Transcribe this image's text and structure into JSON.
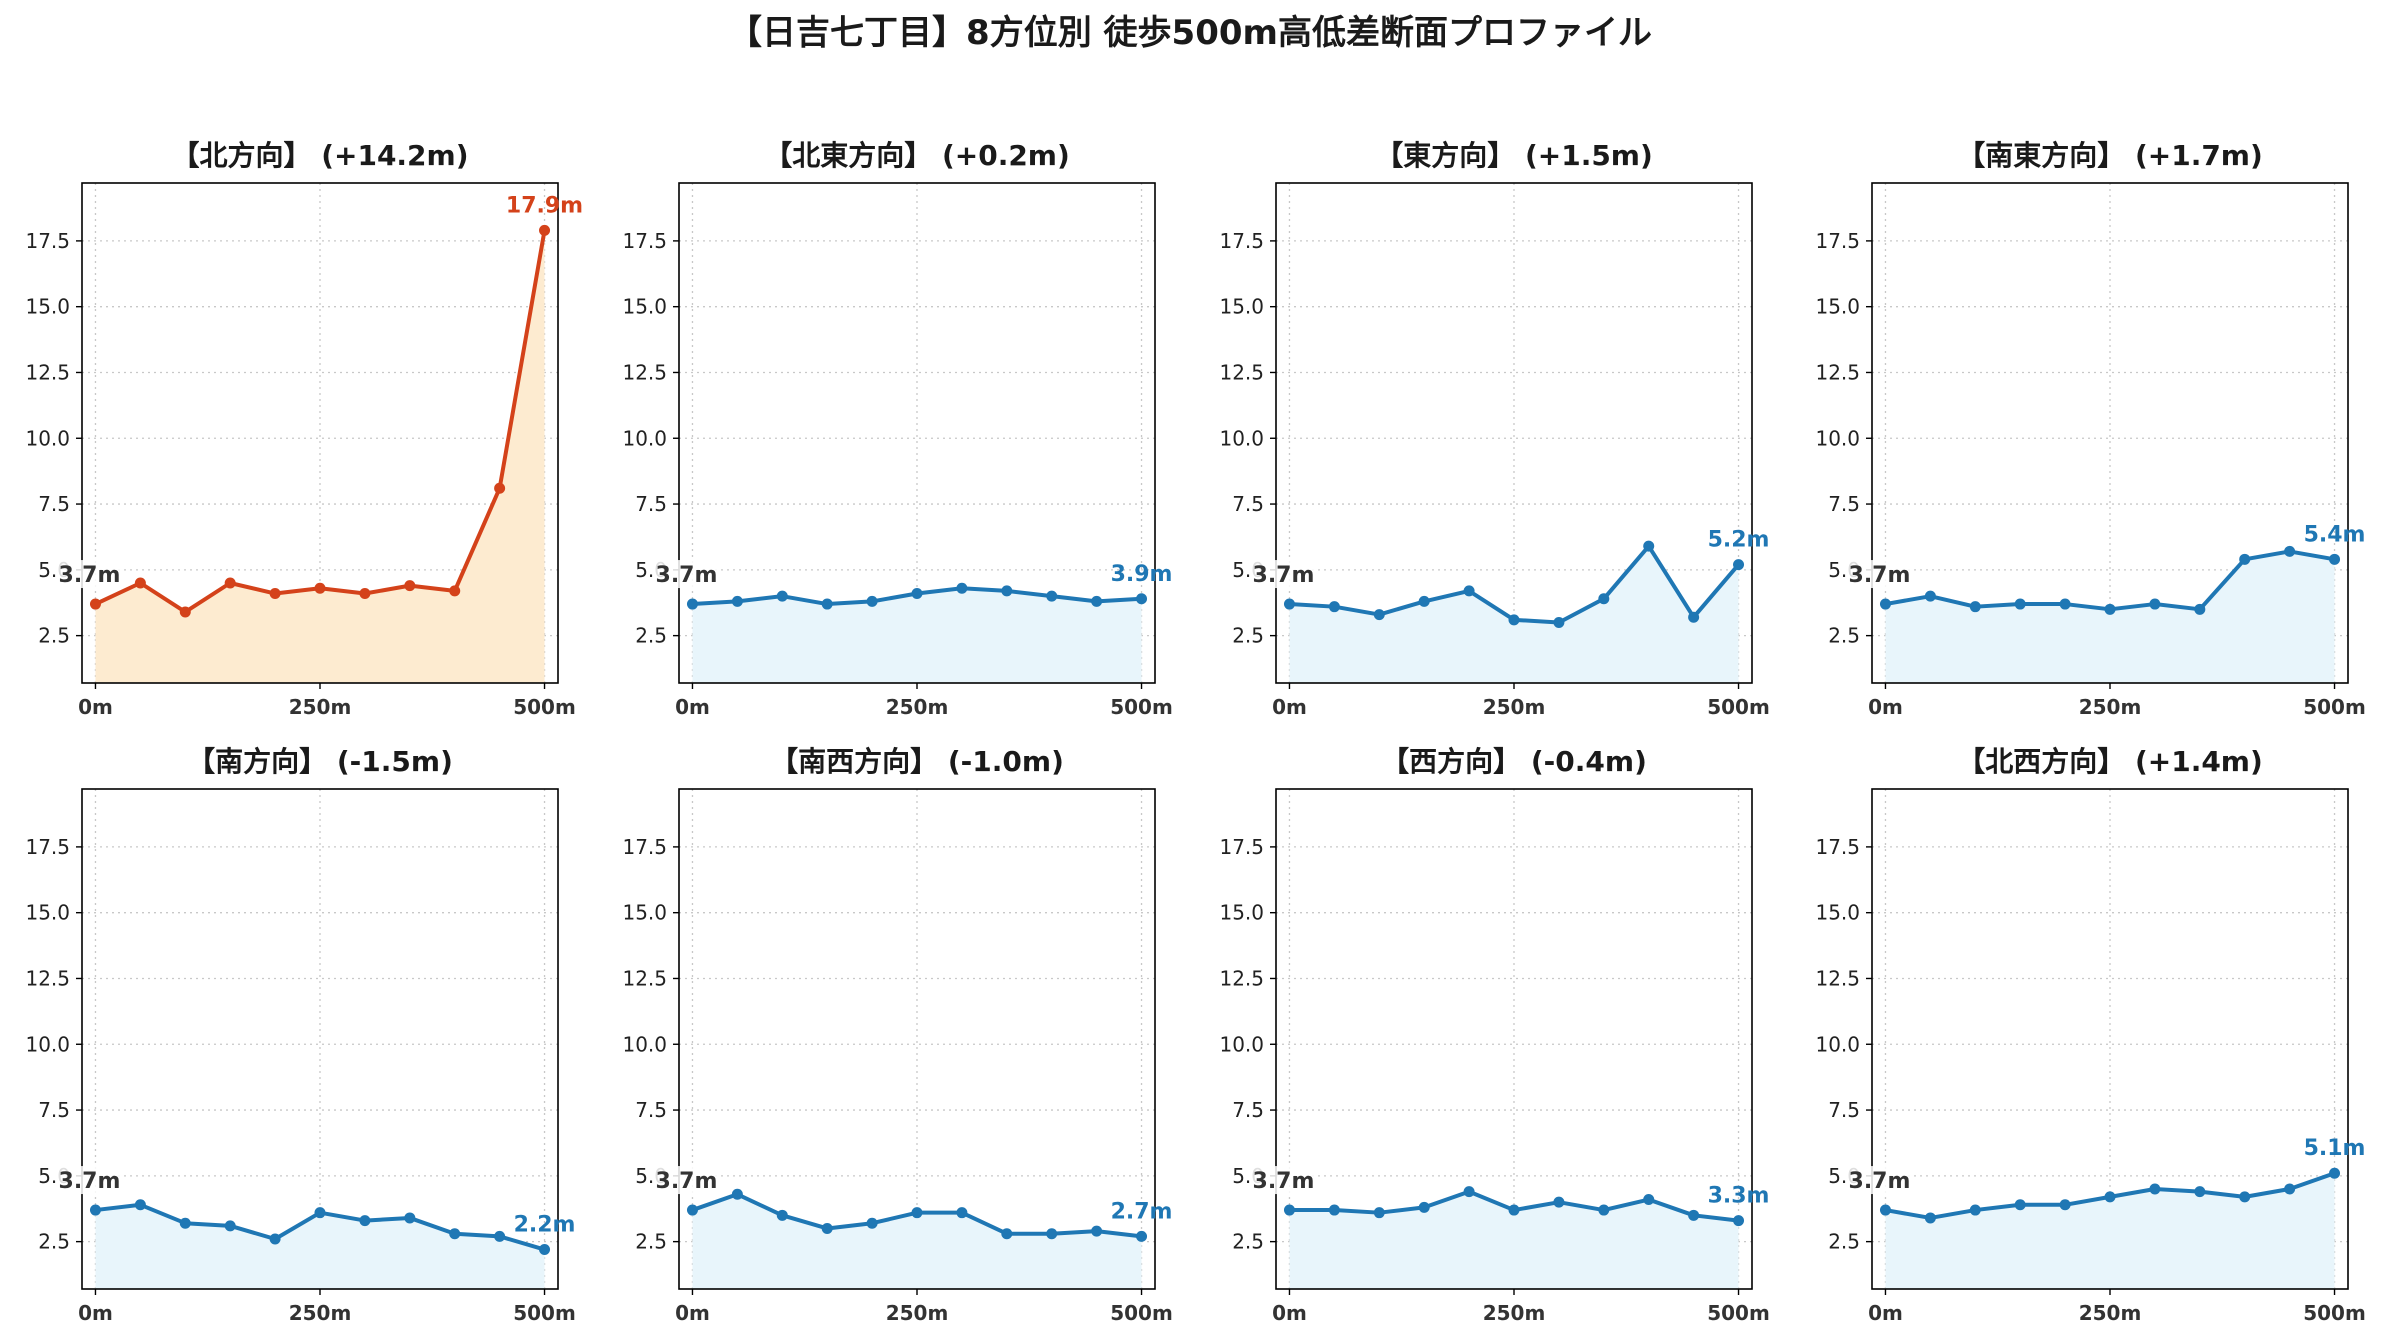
{
  "title": "【日吉七丁目】8方位別 徒歩500m高低差断面プロファイル",
  "colors": {
    "highlight_line": "#d4421a",
    "highlight_fill": "#fdebd0",
    "normal_line": "#1f77b4",
    "normal_fill": "#e8f5fb",
    "start_label": "#333333",
    "grid": "#c8c8c8"
  },
  "chart_data": [
    {
      "type": "area",
      "title": "【北方向】 (+14.2m)",
      "highlight": true,
      "x": [
        0,
        50,
        100,
        150,
        200,
        250,
        300,
        350,
        400,
        450,
        500
      ],
      "y": [
        3.7,
        4.5,
        3.4,
        4.5,
        4.1,
        4.3,
        4.1,
        4.4,
        4.2,
        8.1,
        17.9
      ],
      "start_label": "3.7m",
      "end_label": "17.9m"
    },
    {
      "type": "area",
      "title": "【北東方向】 (+0.2m)",
      "highlight": false,
      "x": [
        0,
        50,
        100,
        150,
        200,
        250,
        300,
        350,
        400,
        450,
        500
      ],
      "y": [
        3.7,
        3.8,
        4.0,
        3.7,
        3.8,
        4.1,
        4.3,
        4.2,
        4.0,
        3.8,
        3.9
      ],
      "start_label": "3.7m",
      "end_label": "3.9m"
    },
    {
      "type": "area",
      "title": "【東方向】 (+1.5m)",
      "highlight": false,
      "x": [
        0,
        50,
        100,
        150,
        200,
        250,
        300,
        350,
        400,
        450,
        500
      ],
      "y": [
        3.7,
        3.6,
        3.3,
        3.8,
        4.2,
        3.1,
        3.0,
        3.9,
        5.9,
        3.2,
        5.2
      ],
      "start_label": "3.7m",
      "end_label": "5.2m"
    },
    {
      "type": "area",
      "title": "【南東方向】 (+1.7m)",
      "highlight": false,
      "x": [
        0,
        50,
        100,
        150,
        200,
        250,
        300,
        350,
        400,
        450,
        500
      ],
      "y": [
        3.7,
        4.0,
        3.6,
        3.7,
        3.7,
        3.5,
        3.7,
        3.5,
        5.4,
        5.7,
        5.4
      ],
      "start_label": "3.7m",
      "end_label": "5.4m"
    },
    {
      "type": "area",
      "title": "【南方向】 (-1.5m)",
      "highlight": false,
      "x": [
        0,
        50,
        100,
        150,
        200,
        250,
        300,
        350,
        400,
        450,
        500
      ],
      "y": [
        3.7,
        3.9,
        3.2,
        3.1,
        2.6,
        3.6,
        3.3,
        3.4,
        2.8,
        2.7,
        2.2
      ],
      "start_label": "3.7m",
      "end_label": "2.2m"
    },
    {
      "type": "area",
      "title": "【南西方向】 (-1.0m)",
      "highlight": false,
      "x": [
        0,
        50,
        100,
        150,
        200,
        250,
        300,
        350,
        400,
        450,
        500
      ],
      "y": [
        3.7,
        4.3,
        3.5,
        3.0,
        3.2,
        3.6,
        3.6,
        2.8,
        2.8,
        2.9,
        2.7
      ],
      "start_label": "3.7m",
      "end_label": "2.7m"
    },
    {
      "type": "area",
      "title": "【西方向】 (-0.4m)",
      "highlight": false,
      "x": [
        0,
        50,
        100,
        150,
        200,
        250,
        300,
        350,
        400,
        450,
        500
      ],
      "y": [
        3.7,
        3.7,
        3.6,
        3.8,
        4.4,
        3.7,
        4.0,
        3.7,
        4.1,
        3.5,
        3.3
      ],
      "start_label": "3.7m",
      "end_label": "3.3m"
    },
    {
      "type": "area",
      "title": "【北西方向】 (+1.4m)",
      "highlight": false,
      "x": [
        0,
        50,
        100,
        150,
        200,
        250,
        300,
        350,
        400,
        450,
        500
      ],
      "y": [
        3.7,
        3.4,
        3.7,
        3.9,
        3.9,
        4.2,
        4.5,
        4.4,
        4.2,
        4.5,
        5.1
      ],
      "start_label": "3.7m",
      "end_label": "5.1m"
    }
  ],
  "axes": {
    "xlim": [
      -15,
      515
    ],
    "ylim": [
      0.7,
      19.7
    ],
    "yticks": [
      "2.5",
      "5.0",
      "7.5",
      "10.0",
      "12.5",
      "15.0",
      "17.5"
    ],
    "xticks": [
      "0m",
      "250m",
      "500m"
    ],
    "grid": true
  }
}
